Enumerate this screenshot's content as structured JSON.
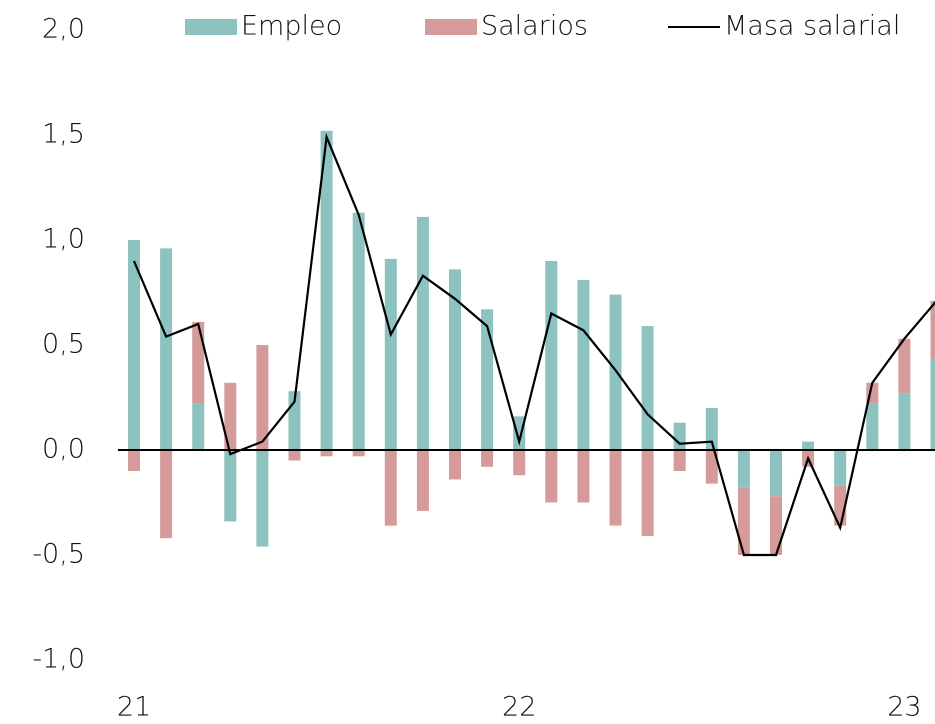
{
  "chart_data": {
    "type": "bar",
    "categories": [
      "21",
      null,
      null,
      null,
      null,
      null,
      null,
      null,
      null,
      null,
      null,
      null,
      "22",
      null,
      null,
      null,
      null,
      null,
      null,
      null,
      null,
      null,
      null,
      null,
      "23",
      null
    ],
    "series": [
      {
        "name": "Empleo",
        "color": "#8cc2c0",
        "values": [
          1.0,
          0.96,
          0.22,
          -0.34,
          -0.46,
          0.28,
          1.52,
          1.13,
          0.91,
          1.11,
          0.86,
          0.67,
          0.16,
          0.9,
          0.81,
          0.74,
          0.59,
          0.13,
          0.2,
          -0.18,
          -0.22,
          0.04,
          -0.17,
          0.22,
          0.27,
          0.43
        ]
      },
      {
        "name": "Salarios",
        "color": "#d59b9b",
        "values": [
          -0.1,
          -0.42,
          0.39,
          0.32,
          0.5,
          -0.05,
          -0.03,
          -0.03,
          -0.36,
          -0.29,
          -0.14,
          -0.08,
          -0.12,
          -0.25,
          -0.25,
          -0.36,
          -0.41,
          -0.1,
          -0.16,
          -0.32,
          -0.28,
          -0.08,
          -0.19,
          0.1,
          0.26,
          0.28
        ]
      },
      {
        "name": "Masa salarial",
        "type": "line",
        "color": "#000000",
        "values": [
          0.9,
          0.54,
          0.6,
          -0.02,
          0.04,
          0.23,
          1.49,
          1.12,
          0.55,
          0.83,
          0.72,
          0.59,
          0.04,
          0.65,
          0.57,
          0.38,
          0.17,
          0.03,
          0.04,
          -0.5,
          -0.5,
          -0.04,
          -0.37,
          0.32,
          0.53,
          0.71
        ]
      }
    ],
    "ylim": [
      -1.0,
      2.0
    ],
    "yticks": [
      {
        "value": -1.0,
        "label": "-1,0"
      },
      {
        "value": -0.5,
        "label": "-0,5"
      },
      {
        "value": 0,
        "label": "0,0"
      },
      {
        "value": 0.5,
        "label": "0,5"
      },
      {
        "value": 1.0,
        "label": "1,0"
      },
      {
        "value": 1.5,
        "label": "1,5"
      },
      {
        "value": 2.0,
        "label": "2,0"
      }
    ],
    "stacked": true,
    "grid": false,
    "legend": "top"
  }
}
